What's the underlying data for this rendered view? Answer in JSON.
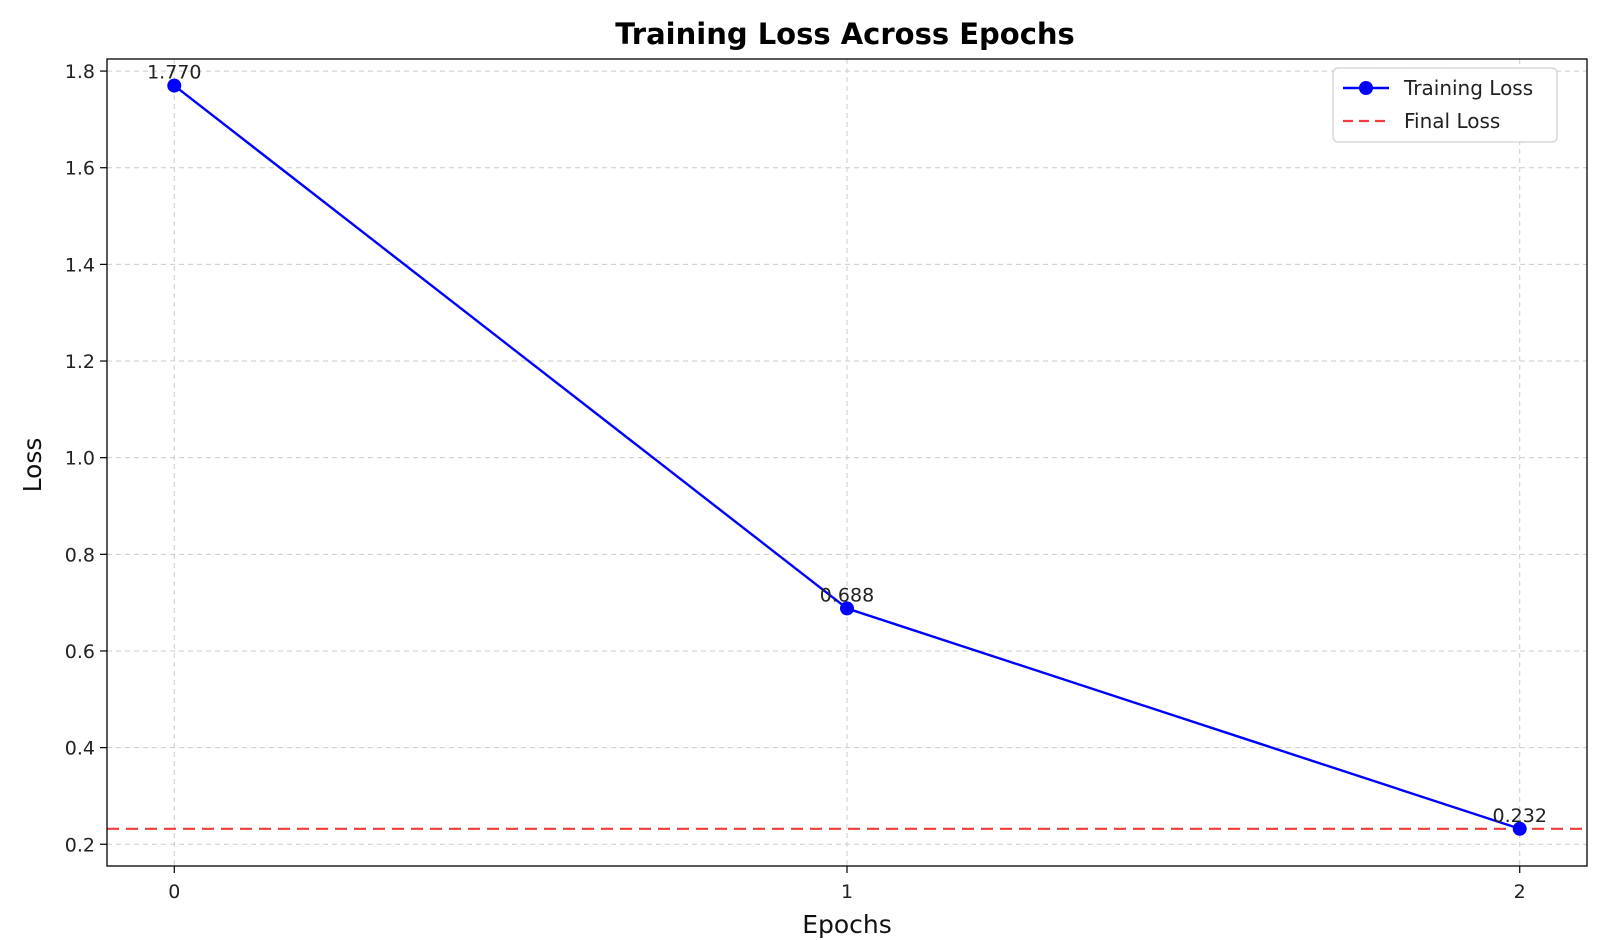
{
  "chart_data": {
    "type": "line",
    "title": "Training Loss Across Epochs",
    "xlabel": "Epochs",
    "ylabel": "Loss",
    "x": [
      0,
      1,
      2
    ],
    "xticks": [
      "0",
      "1",
      "2"
    ],
    "xlim": [
      -0.1,
      2.1
    ],
    "ylim": [
      0.155,
      1.825
    ],
    "yticks": [
      "0.2",
      "0.4",
      "0.6",
      "0.8",
      "1.0",
      "1.2",
      "1.4",
      "1.6",
      "1.8"
    ],
    "grid": true,
    "legend_position": "top-right",
    "series": [
      {
        "name": "Training Loss",
        "values": [
          1.77,
          0.688,
          0.232
        ],
        "data_labels": [
          "1.770",
          "0.688",
          "0.232"
        ],
        "color": "#0000ff",
        "style": "solid",
        "marker": "circle"
      }
    ],
    "reference_lines": [
      {
        "name": "Final Loss",
        "y": 0.232,
        "color": "#f03c3c",
        "style": "dashed"
      }
    ]
  }
}
